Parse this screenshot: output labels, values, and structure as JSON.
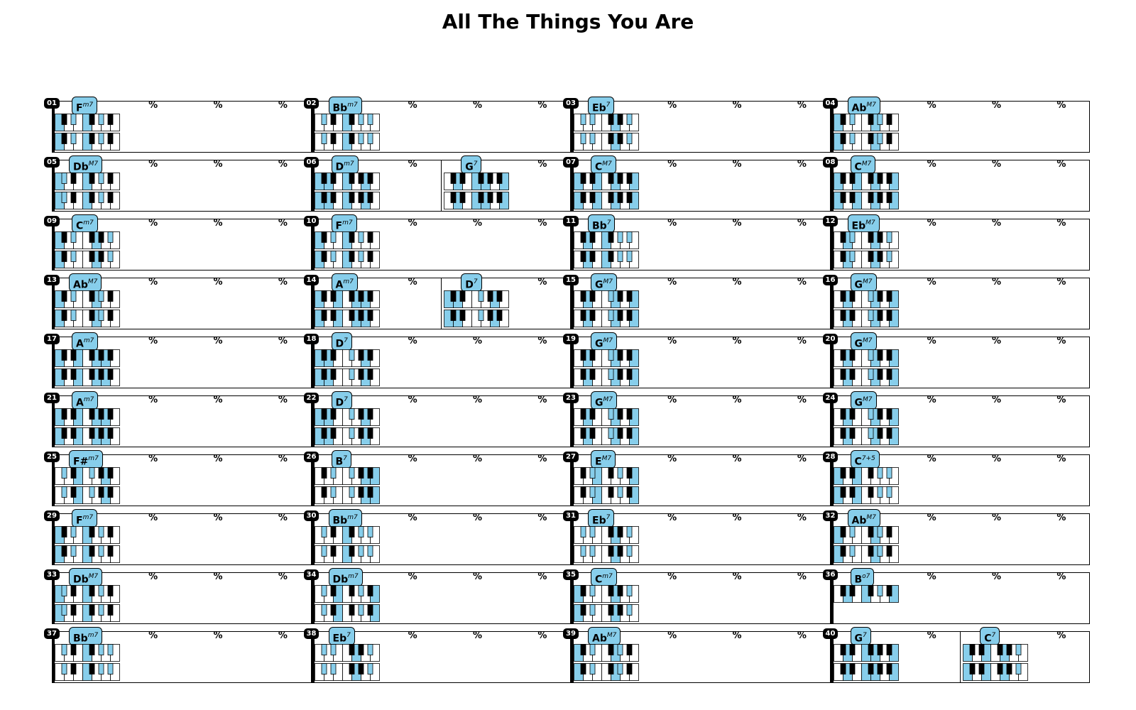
{
  "title": "All The Things You Are",
  "repeat_symbol": "%",
  "colors": {
    "highlight": "#87ceeb",
    "black_key": "#000000",
    "white_key": "#ffffff"
  },
  "bars": [
    {
      "number": "01",
      "chords": [
        {
          "root": "F",
          "quality": "m7"
        }
      ]
    },
    {
      "number": "02",
      "chords": [
        {
          "root": "Bb",
          "quality": "m7"
        }
      ]
    },
    {
      "number": "03",
      "chords": [
        {
          "root": "Eb",
          "quality": "7"
        }
      ]
    },
    {
      "number": "04",
      "chords": [
        {
          "root": "Ab",
          "quality": "M7"
        }
      ]
    },
    {
      "number": "05",
      "chords": [
        {
          "root": "Db",
          "quality": "M7"
        }
      ]
    },
    {
      "number": "06",
      "chords": [
        {
          "root": "D",
          "quality": "m7"
        },
        {
          "root": "G",
          "quality": "7"
        }
      ]
    },
    {
      "number": "07",
      "chords": [
        {
          "root": "C",
          "quality": "M7"
        }
      ]
    },
    {
      "number": "08",
      "chords": [
        {
          "root": "C",
          "quality": "M7"
        }
      ]
    },
    {
      "number": "09",
      "chords": [
        {
          "root": "C",
          "quality": "m7"
        }
      ]
    },
    {
      "number": "10",
      "chords": [
        {
          "root": "F",
          "quality": "m7"
        }
      ]
    },
    {
      "number": "11",
      "chords": [
        {
          "root": "Bb",
          "quality": "7"
        }
      ]
    },
    {
      "number": "12",
      "chords": [
        {
          "root": "Eb",
          "quality": "M7"
        }
      ]
    },
    {
      "number": "13",
      "chords": [
        {
          "root": "Ab",
          "quality": "M7"
        }
      ]
    },
    {
      "number": "14",
      "chords": [
        {
          "root": "A",
          "quality": "m7"
        },
        {
          "root": "D",
          "quality": "7"
        }
      ]
    },
    {
      "number": "15",
      "chords": [
        {
          "root": "G",
          "quality": "M7"
        }
      ]
    },
    {
      "number": "16",
      "chords": [
        {
          "root": "G",
          "quality": "M7"
        }
      ]
    },
    {
      "number": "17",
      "chords": [
        {
          "root": "A",
          "quality": "m7"
        }
      ]
    },
    {
      "number": "18",
      "chords": [
        {
          "root": "D",
          "quality": "7"
        }
      ]
    },
    {
      "number": "19",
      "chords": [
        {
          "root": "G",
          "quality": "M7"
        }
      ]
    },
    {
      "number": "20",
      "chords": [
        {
          "root": "G",
          "quality": "M7"
        }
      ]
    },
    {
      "number": "21",
      "chords": [
        {
          "root": "A",
          "quality": "m7"
        }
      ]
    },
    {
      "number": "22",
      "chords": [
        {
          "root": "D",
          "quality": "7"
        }
      ]
    },
    {
      "number": "23",
      "chords": [
        {
          "root": "G",
          "quality": "M7"
        }
      ]
    },
    {
      "number": "24",
      "chords": [
        {
          "root": "G",
          "quality": "M7"
        }
      ]
    },
    {
      "number": "25",
      "chords": [
        {
          "root": "F#",
          "quality": "m7"
        }
      ]
    },
    {
      "number": "26",
      "chords": [
        {
          "root": "B",
          "quality": "7"
        }
      ]
    },
    {
      "number": "27",
      "chords": [
        {
          "root": "E",
          "quality": "M7"
        }
      ]
    },
    {
      "number": "28",
      "chords": [
        {
          "root": "C",
          "quality": "7+5"
        }
      ]
    },
    {
      "number": "29",
      "chords": [
        {
          "root": "F",
          "quality": "m7"
        }
      ]
    },
    {
      "number": "30",
      "chords": [
        {
          "root": "Bb",
          "quality": "m7"
        }
      ]
    },
    {
      "number": "31",
      "chords": [
        {
          "root": "Eb",
          "quality": "7"
        }
      ]
    },
    {
      "number": "32",
      "chords": [
        {
          "root": "Ab",
          "quality": "M7"
        }
      ]
    },
    {
      "number": "33",
      "chords": [
        {
          "root": "Db",
          "quality": "M7"
        }
      ]
    },
    {
      "number": "34",
      "chords": [
        {
          "root": "Db",
          "quality": "m7"
        }
      ]
    },
    {
      "number": "35",
      "chords": [
        {
          "root": "C",
          "quality": "m7"
        }
      ]
    },
    {
      "number": "36",
      "chords": [
        {
          "root": "B",
          "quality": "o7",
          "single_keyboard": true
        }
      ]
    },
    {
      "number": "37",
      "chords": [
        {
          "root": "Bb",
          "quality": "m7"
        }
      ]
    },
    {
      "number": "38",
      "chords": [
        {
          "root": "Eb",
          "quality": "7"
        }
      ]
    },
    {
      "number": "39",
      "chords": [
        {
          "root": "Ab",
          "quality": "M7"
        }
      ]
    },
    {
      "number": "40",
      "chords": [
        {
          "root": "G",
          "quality": "7"
        },
        {
          "root": "C",
          "quality": "7"
        }
      ]
    }
  ]
}
